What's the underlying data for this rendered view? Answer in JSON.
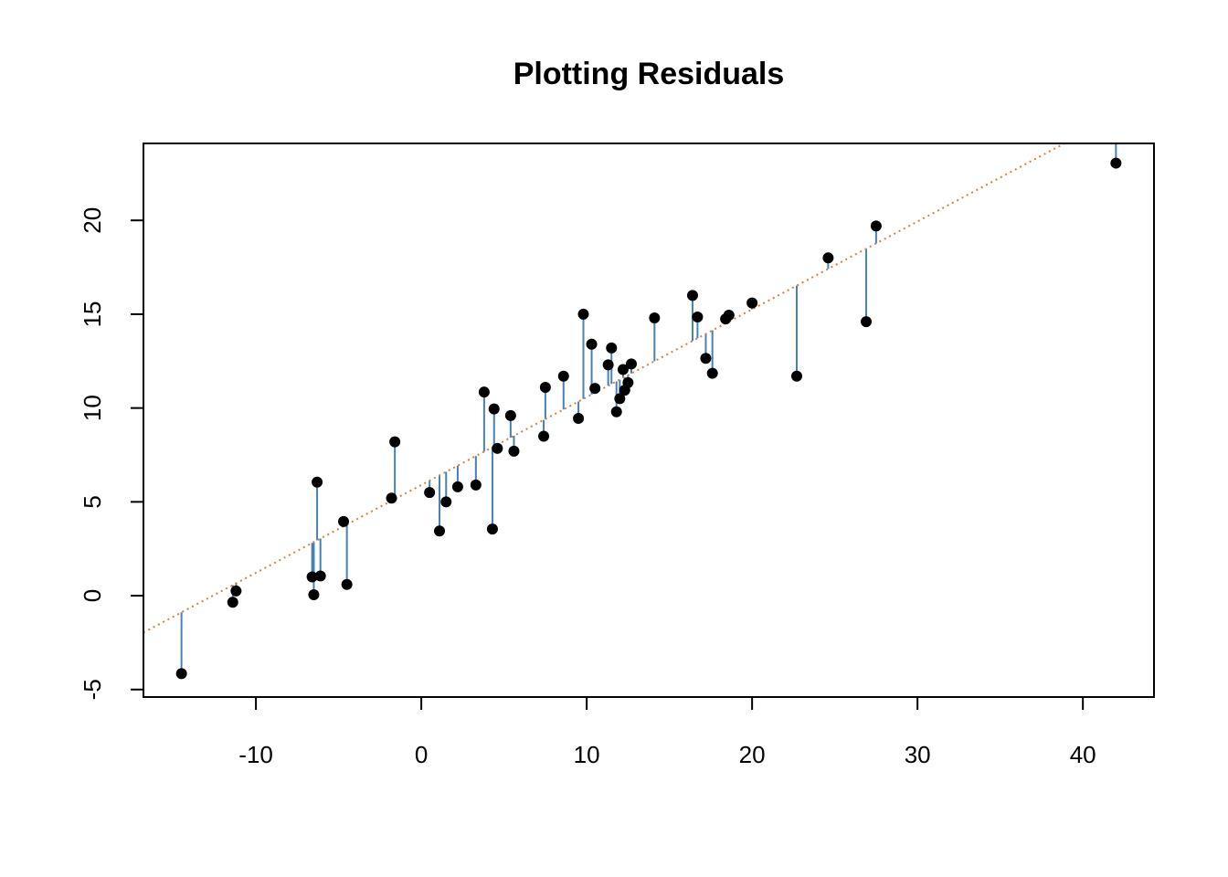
{
  "chart_data": {
    "type": "scatter",
    "title": "Plotting Residuals",
    "xlabel": "",
    "ylabel": "",
    "xlim": [
      -16.8,
      44.3
    ],
    "ylim": [
      -5.4,
      24.1
    ],
    "x_ticks": [
      -10,
      0,
      10,
      20,
      30,
      40
    ],
    "x_tick_labels": [
      "-10",
      "0",
      "10",
      "20",
      "30",
      "40"
    ],
    "y_ticks": [
      -5,
      0,
      5,
      10,
      15,
      20
    ],
    "y_tick_labels": [
      "-5",
      "0",
      "5",
      "10",
      "15",
      "20"
    ],
    "grid": false,
    "legend": "none",
    "fit_line": {
      "intercept": 5.9,
      "slope": 0.468
    },
    "points": [
      [
        -14.5,
        -4.15
      ],
      [
        -11.4,
        -0.35
      ],
      [
        -11.2,
        0.25
      ],
      [
        -6.6,
        1.0
      ],
      [
        -6.5,
        0.05
      ],
      [
        -6.3,
        6.05
      ],
      [
        -6.1,
        1.05
      ],
      [
        -4.7,
        3.95
      ],
      [
        -4.5,
        0.6
      ],
      [
        -1.8,
        5.2
      ],
      [
        -1.6,
        8.2
      ],
      [
        0.5,
        5.5
      ],
      [
        1.1,
        3.45
      ],
      [
        1.5,
        5.0
      ],
      [
        2.2,
        5.8
      ],
      [
        3.3,
        5.9
      ],
      [
        3.8,
        10.85
      ],
      [
        4.3,
        3.55
      ],
      [
        4.4,
        9.95
      ],
      [
        4.6,
        7.85
      ],
      [
        5.4,
        9.6
      ],
      [
        5.6,
        7.7
      ],
      [
        7.4,
        8.5
      ],
      [
        7.5,
        11.1
      ],
      [
        8.6,
        11.7
      ],
      [
        9.5,
        9.45
      ],
      [
        9.8,
        15.0
      ],
      [
        10.3,
        13.4
      ],
      [
        10.5,
        11.05
      ],
      [
        11.3,
        12.3
      ],
      [
        11.5,
        13.2
      ],
      [
        11.8,
        9.8
      ],
      [
        12.0,
        10.5
      ],
      [
        12.2,
        12.05
      ],
      [
        12.3,
        10.95
      ],
      [
        12.5,
        11.35
      ],
      [
        12.7,
        12.35
      ],
      [
        14.1,
        14.8
      ],
      [
        16.4,
        16.0
      ],
      [
        16.7,
        14.85
      ],
      [
        17.2,
        12.65
      ],
      [
        17.6,
        11.85
      ],
      [
        18.4,
        14.75
      ],
      [
        18.6,
        14.95
      ],
      [
        20.0,
        15.6
      ],
      [
        22.7,
        11.7
      ],
      [
        24.6,
        18.0
      ],
      [
        26.9,
        14.6
      ],
      [
        27.5,
        19.7
      ],
      [
        42.0,
        23.05
      ]
    ],
    "colors": {
      "points": "#000000",
      "residuals": "#4682B4",
      "fit_line": "#CD853F"
    }
  }
}
